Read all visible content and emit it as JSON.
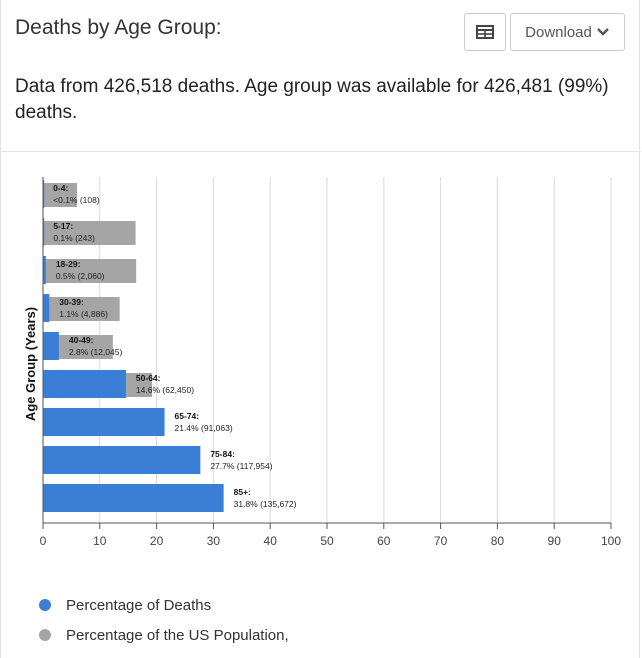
{
  "header": {
    "title": "Deaths by Age Group:",
    "download_label": "Download"
  },
  "summary": "Data from 426,518 deaths. Age group was available for 426,481 (99%) deaths.",
  "colors": {
    "deaths": "#3a7fd5",
    "population": "#a5a5a5",
    "grid": "#d9d9d9",
    "axis": "#555555"
  },
  "chart_data": {
    "type": "bar",
    "orientation": "horizontal",
    "ylabel": "Age Group (Years)",
    "xlim": [
      0,
      100
    ],
    "xticks": [
      0,
      10,
      20,
      30,
      40,
      50,
      60,
      70,
      80,
      90,
      100
    ],
    "categories": [
      "0-4",
      "5-17",
      "18-29",
      "30-39",
      "40-49",
      "50-64",
      "65-74",
      "75-84",
      "85+"
    ],
    "labels": [
      {
        "group": "0-4:",
        "value": "<0.1% (108)"
      },
      {
        "group": "5-17:",
        "value": "0.1% (243)"
      },
      {
        "group": "18-29:",
        "value": "0.5% (2,060)"
      },
      {
        "group": "30-39:",
        "value": "1.1% (4,886)"
      },
      {
        "group": "40-49:",
        "value": "2.8% (12,045)"
      },
      {
        "group": "50-64:",
        "value": "14.6% (62,450)"
      },
      {
        "group": "65-74:",
        "value": "21.4% (91,063)"
      },
      {
        "group": "75-84:",
        "value": "27.7% (117,954)"
      },
      {
        "group": "85+:",
        "value": "31.8% (135,672)"
      }
    ],
    "series": [
      {
        "name": "Percentage of Deaths",
        "values": [
          0.03,
          0.06,
          0.5,
          1.1,
          2.8,
          14.6,
          21.4,
          27.7,
          31.8
        ]
      },
      {
        "name": "Percentage of the US Population,",
        "values": [
          6.0,
          16.3,
          16.4,
          13.5,
          12.3,
          19.2,
          9.6,
          4.9,
          2.0
        ]
      }
    ]
  }
}
